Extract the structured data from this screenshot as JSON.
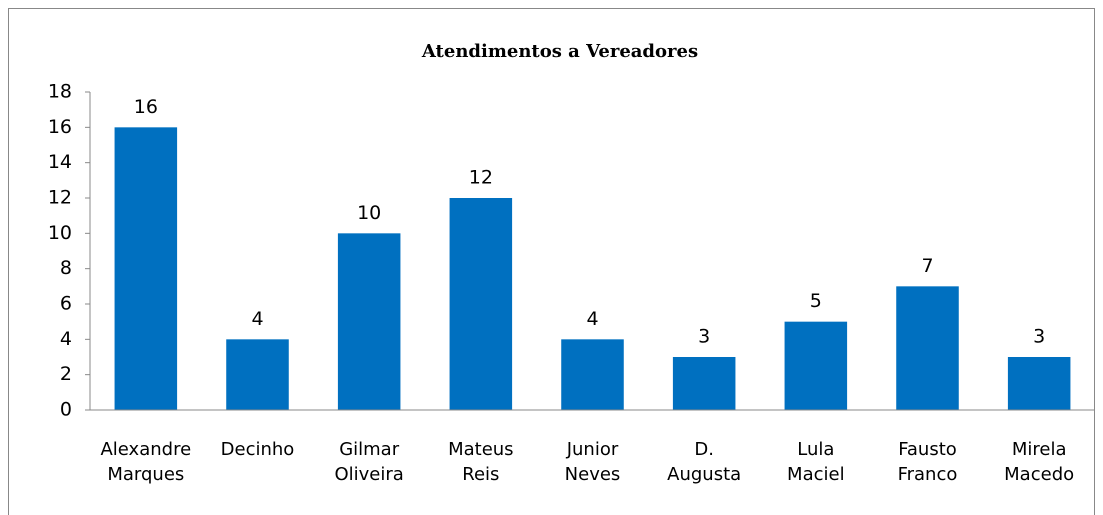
{
  "chart_data": {
    "type": "bar",
    "title": "Atendimentos a Vereadores",
    "categories": [
      "Alexandre Marques",
      "Decinho",
      "Gilmar Oliveira",
      "Mateus Reis",
      "Junior Neves",
      "D. Augusta",
      "Lula Maciel",
      "Fausto Franco",
      "Mirela Macedo"
    ],
    "values": [
      16,
      4,
      10,
      12,
      4,
      3,
      5,
      7,
      3
    ],
    "color": "#0070c0",
    "ylim": [
      0,
      18
    ],
    "yticks": [
      0,
      2,
      4,
      6,
      8,
      10,
      12,
      14,
      16,
      18
    ],
    "grid": false
  }
}
